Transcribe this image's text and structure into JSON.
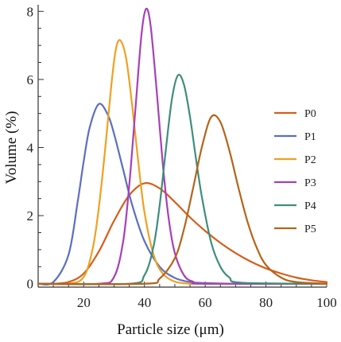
{
  "chart_data": {
    "type": "line",
    "title": "",
    "xlabel": "Particle size (μm)",
    "ylabel": "Volume (%)",
    "xlim": [
      5,
      100
    ],
    "ylim": [
      -0.1,
      8.1
    ],
    "x_ticks": [
      20,
      40,
      60,
      80,
      100
    ],
    "x_tick_labels": [
      "20",
      "40",
      "60",
      "80",
      "100"
    ],
    "y_ticks": [
      0,
      2,
      4,
      6,
      8
    ],
    "y_tick_labels": [
      "0",
      "2",
      "4",
      "6",
      "8"
    ],
    "grid": false,
    "legend_position": "right",
    "series": [
      {
        "name": "P0",
        "color": "#D55E1A",
        "x": [
          5,
          10,
          15,
          20,
          25,
          30,
          35,
          40,
          45,
          50,
          55,
          60,
          65,
          70,
          75,
          80,
          85,
          90,
          95,
          100
        ],
        "values": [
          0.0,
          0.0,
          0.05,
          0.3,
          0.95,
          1.85,
          2.6,
          2.95,
          2.8,
          2.4,
          1.95,
          1.55,
          1.2,
          0.9,
          0.65,
          0.45,
          0.3,
          0.18,
          0.1,
          0.05
        ]
      },
      {
        "name": "P1",
        "color": "#5B6FC0",
        "x": [
          5,
          10,
          15,
          18,
          20,
          22,
          25,
          28,
          30,
          33,
          36,
          40,
          45,
          50,
          55,
          60,
          70,
          80,
          100
        ],
        "values": [
          0.0,
          0.05,
          0.85,
          2.4,
          3.6,
          4.6,
          5.28,
          4.95,
          4.4,
          3.35,
          2.3,
          1.25,
          0.5,
          0.17,
          0.05,
          0.02,
          0.0,
          0.0,
          0.0
        ]
      },
      {
        "name": "P2",
        "color": "#F0A020",
        "x": [
          5,
          15,
          20,
          23,
          25,
          27,
          29,
          30.5,
          32,
          34,
          36,
          38,
          40,
          43,
          46,
          50,
          55,
          60,
          100
        ],
        "values": [
          0.0,
          0.0,
          0.2,
          1.05,
          2.25,
          3.9,
          5.75,
          6.85,
          7.15,
          6.6,
          5.2,
          3.55,
          2.1,
          0.85,
          0.3,
          0.06,
          0.0,
          0.0,
          0.0
        ]
      },
      {
        "name": "P3",
        "color": "#A640B8",
        "x": [
          5,
          25,
          30,
          33,
          35,
          37,
          39,
          40.5,
          42,
          44,
          46,
          48,
          50,
          53,
          56,
          60,
          100
        ],
        "values": [
          0.0,
          0.0,
          0.2,
          1.25,
          2.9,
          5.1,
          7.3,
          8.07,
          7.6,
          5.7,
          3.55,
          1.9,
          0.9,
          0.25,
          0.06,
          0.0,
          0.0
        ]
      },
      {
        "name": "P4",
        "color": "#3E8E7A",
        "x": [
          5,
          35,
          40,
          43,
          45,
          47,
          49,
          51,
          53,
          55,
          57,
          59,
          62,
          65,
          68,
          72,
          100
        ],
        "values": [
          0.0,
          0.0,
          0.25,
          1.1,
          2.3,
          3.9,
          5.4,
          6.12,
          5.85,
          4.9,
          3.65,
          2.5,
          1.2,
          0.5,
          0.18,
          0.03,
          0.0
        ]
      },
      {
        "name": "P5",
        "color": "#B5641A",
        "x": [
          5,
          40,
          45,
          50,
          53,
          56,
          59,
          62,
          65,
          68,
          71,
          74,
          77,
          80,
          85,
          90,
          100
        ],
        "values": [
          0.0,
          0.0,
          0.15,
          0.75,
          1.6,
          2.8,
          4.05,
          4.9,
          4.75,
          3.9,
          2.8,
          1.8,
          1.05,
          0.55,
          0.18,
          0.05,
          0.0
        ]
      }
    ]
  }
}
